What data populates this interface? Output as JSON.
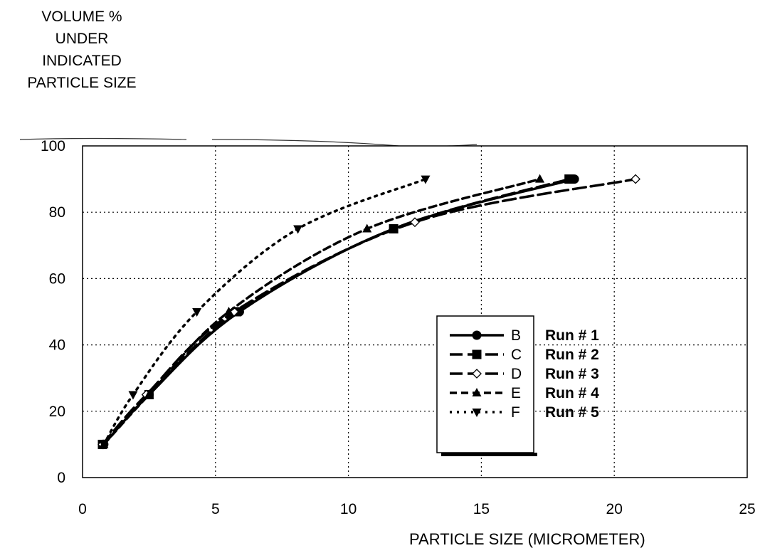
{
  "chart_data": {
    "type": "line",
    "title": "",
    "ylabel_lines": [
      "VOLUME %",
      "UNDER",
      "INDICATED",
      "PARTICLE SIZE"
    ],
    "xlabel": "PARTICLE SIZE (MICROMETER)",
    "xlim": [
      0,
      25
    ],
    "ylim": [
      0,
      100
    ],
    "xticks": [
      "0",
      "5",
      "10",
      "15",
      "20",
      "25"
    ],
    "yticks": [
      "0",
      "20",
      "40",
      "60",
      "80",
      "100"
    ],
    "grid": true,
    "legend_position": "lower-right",
    "series": [
      {
        "name": "B",
        "run": "Run # 1",
        "style": "solid",
        "marker": "circle",
        "x": [
          0.8,
          2.5,
          5.9,
          11.7,
          18.5
        ],
        "y": [
          10,
          25,
          50,
          75,
          90
        ]
      },
      {
        "name": "C",
        "run": "Run # 2",
        "style": "longdash",
        "marker": "square",
        "x": [
          0.75,
          2.5,
          5.8,
          11.7,
          18.3
        ],
        "y": [
          10,
          25,
          50,
          75,
          90
        ]
      },
      {
        "name": "D",
        "run": "Run # 3",
        "style": "longdash",
        "marker": "diamond-open",
        "x": [
          0.75,
          2.4,
          5.7,
          12.5,
          20.8
        ],
        "y": [
          10,
          25,
          50,
          77,
          90
        ]
      },
      {
        "name": "E",
        "run": "Run # 4",
        "style": "dashed",
        "marker": "triangle-up",
        "x": [
          0.8,
          2.5,
          5.5,
          10.7,
          17.2
        ],
        "y": [
          10,
          25,
          50,
          75,
          90
        ]
      },
      {
        "name": "F",
        "run": "Run # 5",
        "style": "dotted",
        "marker": "triangle-down",
        "x": [
          0.8,
          1.9,
          4.3,
          8.1,
          12.9
        ],
        "y": [
          10,
          25,
          50,
          75,
          90
        ]
      }
    ]
  }
}
